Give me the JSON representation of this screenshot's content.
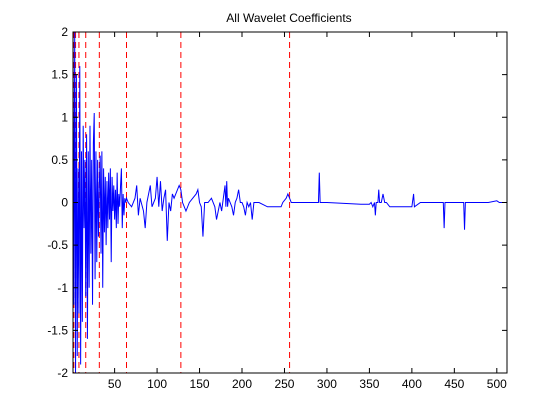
{
  "chart_data": {
    "type": "line",
    "title": "All Wavelet Coefficients",
    "xlabel": "",
    "ylabel": "",
    "xlim": [
      1,
      512
    ],
    "ylim": [
      -2,
      2
    ],
    "x_ticks": [
      50,
      100,
      150,
      200,
      250,
      300,
      350,
      400,
      450,
      500
    ],
    "y_ticks": [
      2,
      1.5,
      1,
      0.5,
      0,
      -0.5,
      -1,
      -1.5,
      -2
    ],
    "grid": false,
    "legend": "none",
    "boundaries": [
      2,
      4,
      8,
      16,
      32,
      64,
      128,
      256
    ],
    "series": [
      {
        "color": "#0000ff",
        "points": [
          [
            1,
            2
          ],
          [
            2,
            -1.2
          ],
          [
            3,
            2
          ],
          [
            4,
            -2
          ],
          [
            5,
            1.5
          ],
          [
            6,
            -1.8
          ],
          [
            7,
            0.4
          ],
          [
            8,
            -1.3
          ],
          [
            9,
            1.6
          ],
          [
            10,
            -1.9
          ],
          [
            11,
            0.6
          ],
          [
            12,
            -1.4
          ],
          [
            13,
            0.9
          ],
          [
            14,
            -0.3
          ],
          [
            15,
            0.5
          ],
          [
            16,
            -1.1
          ],
          [
            17,
            0.8
          ],
          [
            18,
            -1.6
          ],
          [
            19,
            0.6
          ],
          [
            20,
            -1.0
          ],
          [
            21,
            0.9
          ],
          [
            22,
            -0.6
          ],
          [
            23,
            0.5
          ],
          [
            24,
            -1.2
          ],
          [
            25,
            0.7
          ],
          [
            26,
            1.05
          ],
          [
            27,
            -0.9
          ],
          [
            28,
            0.6
          ],
          [
            29,
            -0.7
          ],
          [
            30,
            0.5
          ],
          [
            31,
            -0.4
          ],
          [
            32,
            0.2
          ],
          [
            33,
            0.55
          ],
          [
            34,
            -0.6
          ],
          [
            35,
            0.6
          ],
          [
            36,
            -1.0
          ],
          [
            37,
            0.4
          ],
          [
            38,
            -0.35
          ],
          [
            39,
            0.3
          ],
          [
            40,
            -0.5
          ],
          [
            41,
            0.25
          ],
          [
            42,
            -0.3
          ],
          [
            43,
            0.35
          ],
          [
            44,
            -0.2
          ],
          [
            45,
            0.4
          ],
          [
            46,
            -0.7
          ],
          [
            47,
            0.3
          ],
          [
            48,
            -0.1
          ],
          [
            49,
            0.2
          ],
          [
            50,
            -0.2
          ],
          [
            51,
            0.15
          ],
          [
            52,
            -0.3
          ],
          [
            53,
            0.35
          ],
          [
            54,
            -0.25
          ],
          [
            55,
            0.1
          ],
          [
            56,
            -0.05
          ],
          [
            57,
            0.2
          ],
          [
            58,
            0.4
          ],
          [
            59,
            -0.3
          ],
          [
            60,
            0.1
          ],
          [
            61,
            -0.15
          ],
          [
            62,
            0.05
          ],
          [
            63,
            0.0
          ],
          [
            64,
            0.05
          ],
          [
            66,
            0.0
          ],
          [
            70,
            -0.05
          ],
          [
            74,
            0.05
          ],
          [
            76,
            0.2
          ],
          [
            78,
            -0.15
          ],
          [
            80,
            0.05
          ],
          [
            84,
            -0.1
          ],
          [
            86,
            -0.3
          ],
          [
            88,
            0.0
          ],
          [
            92,
            0.2
          ],
          [
            94,
            -0.05
          ],
          [
            98,
            0.05
          ],
          [
            100,
            0.3
          ],
          [
            102,
            -0.05
          ],
          [
            104,
            0.25
          ],
          [
            106,
            -0.1
          ],
          [
            108,
            0.05
          ],
          [
            110,
            0.15
          ],
          [
            112,
            -0.45
          ],
          [
            114,
            0.0
          ],
          [
            116,
            -0.1
          ],
          [
            118,
            0.1
          ],
          [
            120,
            0.05
          ],
          [
            122,
            0.1
          ],
          [
            124,
            0.15
          ],
          [
            126,
            0.2
          ],
          [
            128,
            0.15
          ],
          [
            130,
            0.0
          ],
          [
            134,
            -0.1
          ],
          [
            138,
            0.0
          ],
          [
            142,
            0.05
          ],
          [
            146,
            0.1
          ],
          [
            148,
            0.15
          ],
          [
            150,
            0.0
          ],
          [
            152,
            -0.05
          ],
          [
            154,
            -0.4
          ],
          [
            156,
            0.0
          ],
          [
            160,
            0.0
          ],
          [
            164,
            0.05
          ],
          [
            168,
            -0.05
          ],
          [
            170,
            -0.2
          ],
          [
            172,
            -0.1
          ],
          [
            174,
            0.0
          ],
          [
            176,
            -0.1
          ],
          [
            178,
            0.05
          ],
          [
            180,
            0.2
          ],
          [
            181,
            -0.05
          ],
          [
            182,
            0.25
          ],
          [
            183,
            -0.05
          ],
          [
            184,
            0.05
          ],
          [
            186,
            0.0
          ],
          [
            188,
            -0.05
          ],
          [
            190,
            -0.15
          ],
          [
            192,
            0.0
          ],
          [
            194,
            0.05
          ],
          [
            196,
            0.15
          ],
          [
            198,
            0.0
          ],
          [
            200,
            0.0
          ],
          [
            202,
            -0.05
          ],
          [
            204,
            -0.15
          ],
          [
            206,
            0.0
          ],
          [
            208,
            -0.05
          ],
          [
            210,
            0.0
          ],
          [
            212,
            -0.2
          ],
          [
            214,
            0.0
          ],
          [
            220,
            0.0
          ],
          [
            230,
            -0.05
          ],
          [
            240,
            -0.05
          ],
          [
            246,
            -0.05
          ],
          [
            248,
            0.0
          ],
          [
            252,
            0.05
          ],
          [
            254,
            0.1
          ],
          [
            256,
            0.05
          ],
          [
            258,
            0.0
          ],
          [
            270,
            0.0
          ],
          [
            280,
            0.0
          ],
          [
            290,
            0.0
          ],
          [
            291,
            0.35
          ],
          [
            292,
            0.0
          ],
          [
            300,
            0.0
          ],
          [
            320,
            -0.01
          ],
          [
            340,
            -0.02
          ],
          [
            350,
            -0.02
          ],
          [
            352,
            0.0
          ],
          [
            354,
            -0.05
          ],
          [
            356,
            0.0
          ],
          [
            357,
            -0.15
          ],
          [
            358,
            0.0
          ],
          [
            360,
            0.0
          ],
          [
            361,
            0.15
          ],
          [
            362,
            0.0
          ],
          [
            364,
            0.0
          ],
          [
            366,
            0.1
          ],
          [
            368,
            0.0
          ],
          [
            370,
            0.0
          ],
          [
            374,
            -0.05
          ],
          [
            380,
            -0.05
          ],
          [
            390,
            -0.05
          ],
          [
            400,
            -0.05
          ],
          [
            402,
            0.1
          ],
          [
            403,
            -0.05
          ],
          [
            410,
            0.0
          ],
          [
            420,
            0.0
          ],
          [
            437,
            0.0
          ],
          [
            438,
            -0.3
          ],
          [
            439,
            0.0
          ],
          [
            450,
            0.0
          ],
          [
            461,
            0.0
          ],
          [
            462,
            -0.32
          ],
          [
            463,
            0.0
          ],
          [
            470,
            0.0
          ],
          [
            480,
            0.0
          ],
          [
            490,
            0.0
          ],
          [
            500,
            0.02
          ],
          [
            503,
            0.0
          ],
          [
            512,
            0.0
          ]
        ]
      }
    ],
    "colors": {
      "series": "#0000ff",
      "boundary": "#ff0000",
      "axes": "#000000"
    }
  }
}
